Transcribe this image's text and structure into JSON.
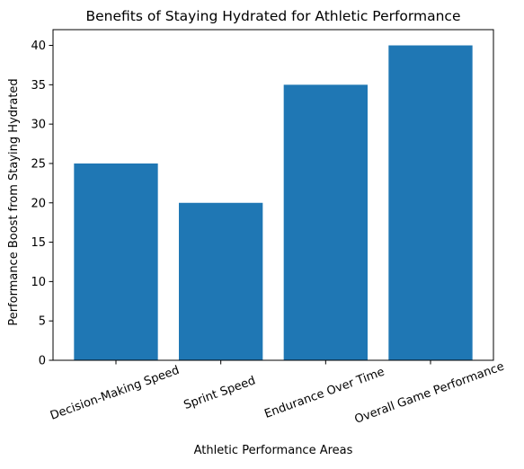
{
  "chart_data": {
    "type": "bar",
    "title": "Benefits of Staying Hydrated for Athletic Performance",
    "xlabel": "Athletic Performance Areas",
    "ylabel": "Performance Boost from Staying Hydrated",
    "categories": [
      "Decision-Making Speed",
      "Sprint Speed",
      "Endurance Over Time",
      "Overall Game Performance"
    ],
    "values": [
      25,
      20,
      35,
      40
    ],
    "ylim": [
      0,
      42
    ],
    "yticks": [
      0,
      5,
      10,
      15,
      20,
      25,
      30,
      35,
      40
    ],
    "bar_color": "#1f77b4",
    "grid": false,
    "legend": "none"
  }
}
